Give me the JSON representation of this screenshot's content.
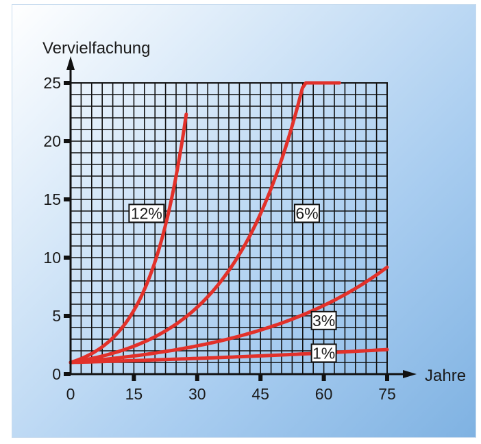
{
  "chart_data": {
    "type": "line",
    "xlabel": "Jahre",
    "ylabel": "Vervielfachung",
    "xlim": [
      0,
      75
    ],
    "ylim": [
      0,
      25
    ],
    "x_ticks": [
      "0",
      "15",
      "30",
      "45",
      "60",
      "75"
    ],
    "y_ticks": [
      "0",
      "5",
      "10",
      "15",
      "20",
      "25"
    ],
    "grid": true,
    "series": [
      {
        "name": "12%",
        "rate": 0.12,
        "x": [
          0,
          5,
          10,
          15,
          20,
          22,
          25,
          27.4
        ],
        "y": [
          1,
          1.76,
          3.11,
          5.47,
          9.65,
          12.1,
          17.0,
          25
        ]
      },
      {
        "name": "6%",
        "rate": 0.06,
        "x": [
          0,
          10,
          20,
          30,
          40,
          45,
          50,
          55,
          60,
          63.7
        ],
        "y": [
          1,
          1.79,
          3.21,
          5.74,
          10.29,
          13.76,
          18.42,
          22.0,
          23.5,
          25
        ]
      },
      {
        "name": "3%",
        "rate": 0.03,
        "x": [
          0,
          15,
          30,
          45,
          60,
          75
        ],
        "y": [
          1,
          1.56,
          2.43,
          3.78,
          5.89,
          8.0
        ]
      },
      {
        "name": "1%",
        "rate": 0.01,
        "x": [
          0,
          15,
          30,
          45,
          60,
          75
        ],
        "y": [
          1,
          1.16,
          1.35,
          1.56,
          1.82,
          2.1
        ]
      }
    ],
    "colors": {
      "line": "#e2312a",
      "grid": "#111111",
      "axis": "#111111"
    }
  }
}
